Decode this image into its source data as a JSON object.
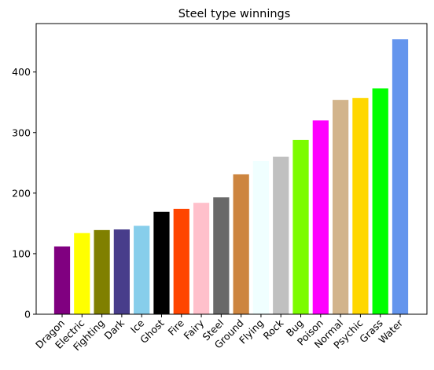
{
  "chart_data": {
    "type": "bar",
    "title": "Steel type winnings",
    "xlabel": "",
    "ylabel": "",
    "ylim": [
      0,
      480
    ],
    "yticks": [
      0,
      100,
      200,
      300,
      400
    ],
    "grid": false,
    "categories": [
      "Dragon",
      "Electric",
      "Fighting",
      "Dark",
      "Ice",
      "Ghost",
      "Fire",
      "Fairy",
      "Steel",
      "Ground",
      "Flying",
      "Rock",
      "Bug",
      "Poison",
      "Normal",
      "Psychic",
      "Grass",
      "Water"
    ],
    "values": [
      112,
      134,
      139,
      140,
      146,
      169,
      174,
      184,
      193,
      231,
      253,
      260,
      288,
      320,
      354,
      357,
      373,
      454
    ],
    "colors": [
      "#800080",
      "#ffff00",
      "#808000",
      "#483d8b",
      "#87ceeb",
      "#000000",
      "#ff4500",
      "#ffc0cb",
      "#696969",
      "#cd853f",
      "#f0ffff",
      "#c0c0c0",
      "#7cfc00",
      "#ff00ff",
      "#d2b48c",
      "#ffd700",
      "#00ff00",
      "#6495ed"
    ],
    "x_tick_rotation": 45
  }
}
